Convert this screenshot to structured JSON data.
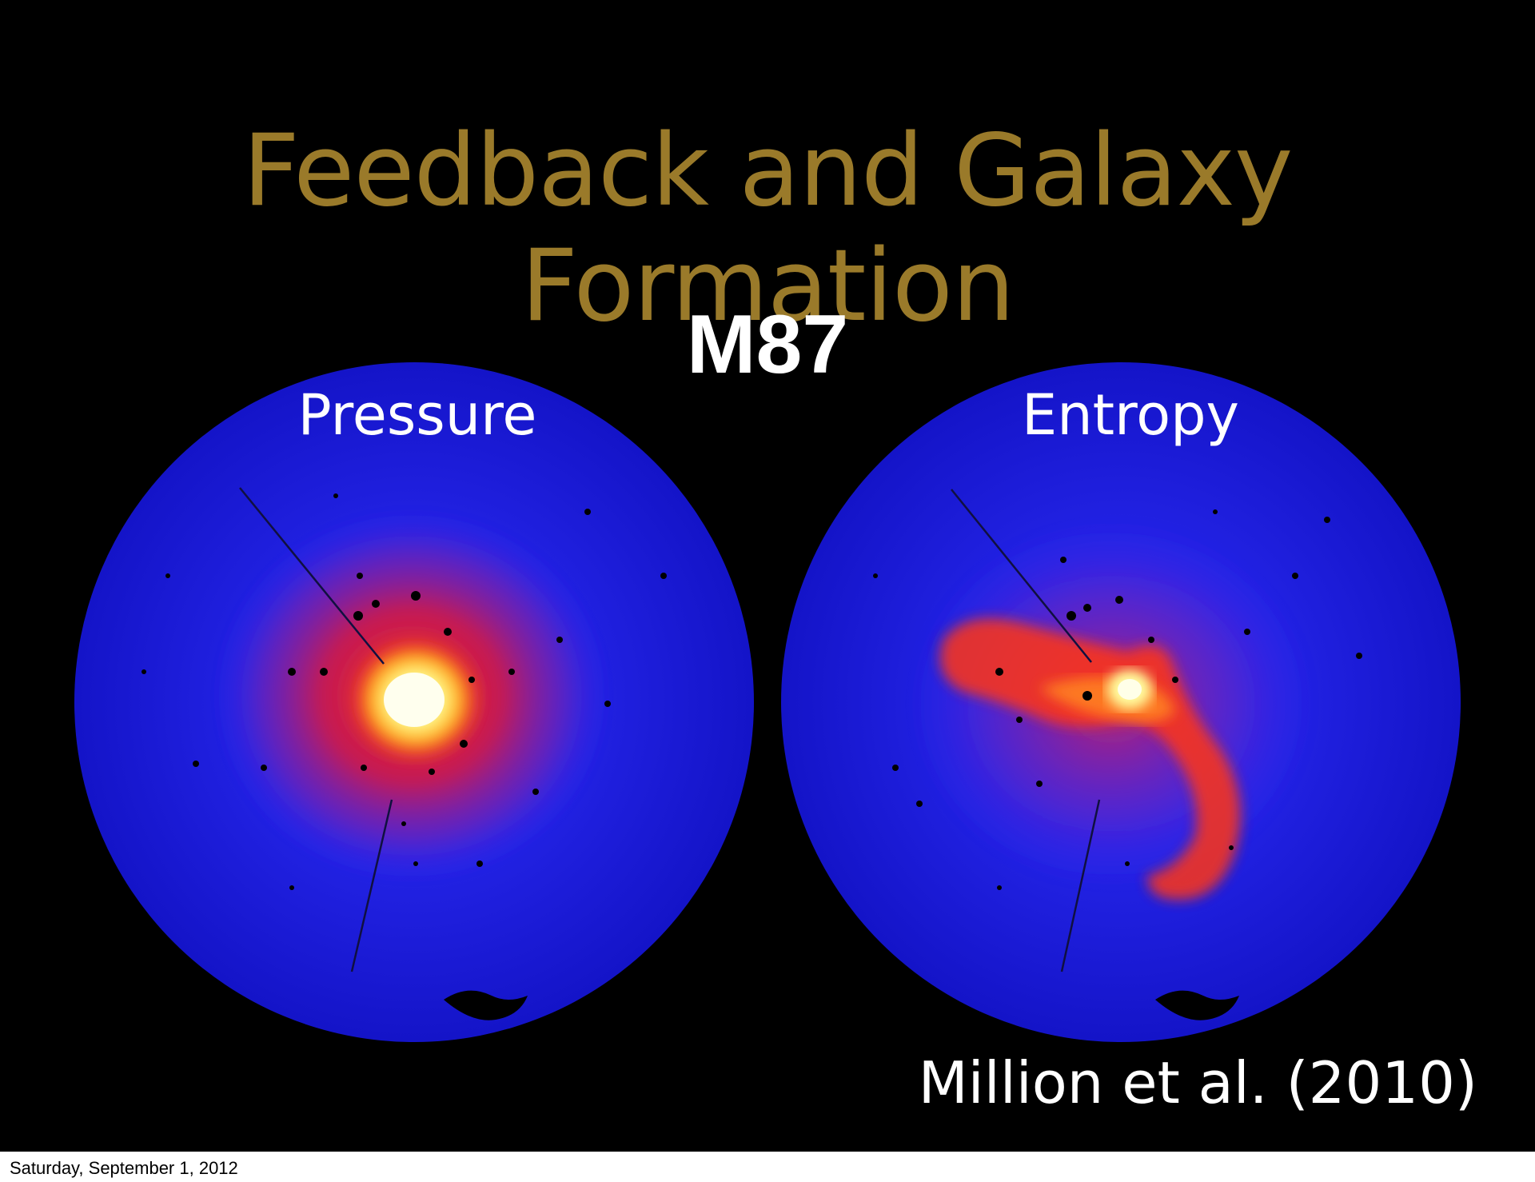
{
  "slide": {
    "title": "Feedback and Galaxy Formation",
    "object_label": "M87",
    "panels": [
      {
        "label": "Pressure"
      },
      {
        "label": "Entropy"
      }
    ],
    "credit": "Million et al. (2010)"
  },
  "footer": {
    "date": "Saturday, September 1, 2012"
  },
  "colors": {
    "background": "#000000",
    "title": "#9a7a2a",
    "text": "#ffffff",
    "map_background": "#1a1ad8",
    "map_emission": "#ff2a10",
    "map_core": "#ffffd0"
  }
}
